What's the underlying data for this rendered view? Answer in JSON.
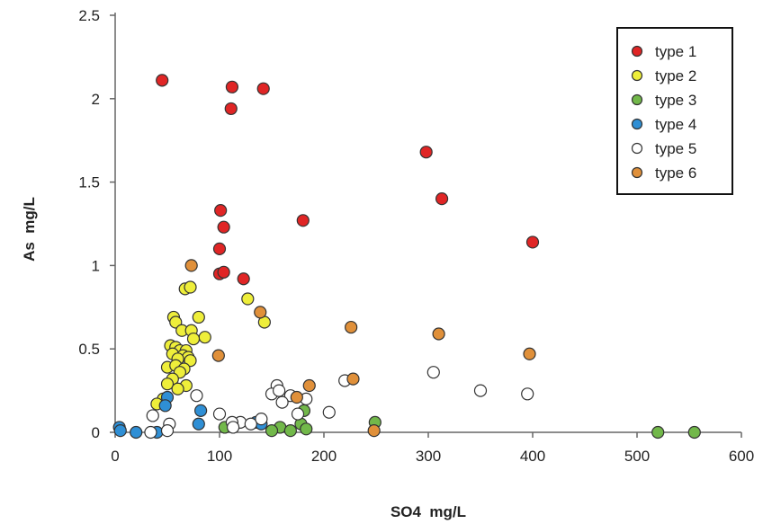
{
  "chart_data": {
    "type": "scatter",
    "title": "",
    "xlabel": "SO4  mg/L",
    "ylabel": "As  mg/L",
    "xlim": [
      0,
      600
    ],
    "ylim": [
      0,
      2.5
    ],
    "x_ticks": [
      "0",
      "100",
      "200",
      "300",
      "400",
      "500",
      "600"
    ],
    "y_ticks": [
      "0",
      "0.5",
      "1",
      "1.5",
      "2",
      "2.5"
    ],
    "grid": false,
    "legend_position": "top-right",
    "series": [
      {
        "name": "type 1",
        "color": "#e02525",
        "points": [
          [
            45,
            2.11
          ],
          [
            112,
            2.07
          ],
          [
            142,
            2.06
          ],
          [
            111,
            1.94
          ],
          [
            298,
            1.68
          ],
          [
            313,
            1.4
          ],
          [
            101,
            1.33
          ],
          [
            104,
            1.23
          ],
          [
            180,
            1.27
          ],
          [
            400,
            1.14
          ],
          [
            100,
            1.1
          ],
          [
            100,
            0.95
          ],
          [
            104,
            0.96
          ],
          [
            123,
            0.92
          ]
        ]
      },
      {
        "name": "type 2",
        "color": "#eeee3a",
        "points": [
          [
            67,
            0.86
          ],
          [
            72,
            0.87
          ],
          [
            127,
            0.8
          ],
          [
            56,
            0.69
          ],
          [
            58,
            0.66
          ],
          [
            80,
            0.69
          ],
          [
            143,
            0.66
          ],
          [
            64,
            0.61
          ],
          [
            73,
            0.61
          ],
          [
            86,
            0.57
          ],
          [
            75,
            0.56
          ],
          [
            53,
            0.52
          ],
          [
            58,
            0.51
          ],
          [
            62,
            0.49
          ],
          [
            68,
            0.49
          ],
          [
            55,
            0.47
          ],
          [
            65,
            0.46
          ],
          [
            70,
            0.45
          ],
          [
            60,
            0.44
          ],
          [
            72,
            0.43
          ],
          [
            50,
            0.39
          ],
          [
            58,
            0.4
          ],
          [
            66,
            0.38
          ],
          [
            62,
            0.36
          ],
          [
            55,
            0.32
          ],
          [
            50,
            0.29
          ],
          [
            68,
            0.28
          ],
          [
            60,
            0.26
          ],
          [
            46,
            0.2
          ],
          [
            40,
            0.17
          ]
        ]
      },
      {
        "name": "type 3",
        "color": "#72b84a",
        "points": [
          [
            181,
            0.13
          ],
          [
            249,
            0.06
          ],
          [
            105,
            0.03
          ],
          [
            178,
            0.05
          ],
          [
            183,
            0.02
          ],
          [
            158,
            0.03
          ],
          [
            168,
            0.01
          ],
          [
            150,
            0.01
          ],
          [
            520,
            0.0
          ],
          [
            555,
            0.0
          ]
        ]
      },
      {
        "name": "type 4",
        "color": "#2f8fd5",
        "points": [
          [
            4,
            0.03
          ],
          [
            5,
            0.01
          ],
          [
            50,
            0.21
          ],
          [
            48,
            0.16
          ],
          [
            82,
            0.13
          ],
          [
            80,
            0.05
          ],
          [
            135,
            0.06
          ],
          [
            140,
            0.05
          ],
          [
            20,
            0.0
          ],
          [
            40,
            0.0
          ]
        ]
      },
      {
        "name": "type 5",
        "color": "#ffffff",
        "points": [
          [
            36,
            0.1
          ],
          [
            78,
            0.22
          ],
          [
            100,
            0.11
          ],
          [
            120,
            0.06
          ],
          [
            112,
            0.06
          ],
          [
            113,
            0.03
          ],
          [
            130,
            0.05
          ],
          [
            140,
            0.08
          ],
          [
            155,
            0.28
          ],
          [
            150,
            0.23
          ],
          [
            157,
            0.25
          ],
          [
            168,
            0.22
          ],
          [
            183,
            0.2
          ],
          [
            175,
            0.11
          ],
          [
            205,
            0.12
          ],
          [
            220,
            0.31
          ],
          [
            305,
            0.36
          ],
          [
            350,
            0.25
          ],
          [
            395,
            0.23
          ],
          [
            52,
            0.05
          ],
          [
            50,
            0.01
          ],
          [
            34,
            0.0
          ],
          [
            160,
            0.18
          ]
        ]
      },
      {
        "name": "type 6",
        "color": "#e0903a",
        "points": [
          [
            73,
            1.0
          ],
          [
            139,
            0.72
          ],
          [
            226,
            0.63
          ],
          [
            310,
            0.59
          ],
          [
            397,
            0.47
          ],
          [
            99,
            0.46
          ],
          [
            186,
            0.28
          ],
          [
            228,
            0.32
          ],
          [
            174,
            0.21
          ],
          [
            248,
            0.01
          ]
        ]
      }
    ]
  }
}
